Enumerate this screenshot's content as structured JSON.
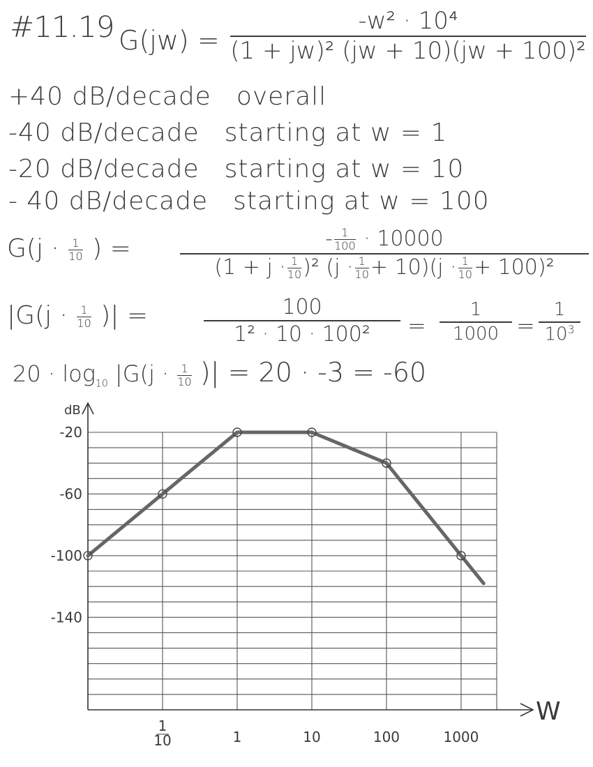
{
  "problem_number": "#11.19",
  "transfer_function": {
    "lhs": "G(jw) =",
    "numerator": "-w² · 10⁴",
    "denominator": "(1 + jw)² (jw + 10)(jw + 100)²"
  },
  "slope_rules": [
    {
      "slope": "+40 dB/decade",
      "condition": "overall"
    },
    {
      "slope": "-40 dB/decade",
      "condition": "starting at  w = 1"
    },
    {
      "slope": "-20 dB/decade",
      "condition": "starting at  w = 10"
    },
    {
      "slope": "- 40 dB/decade",
      "condition": "starting at  w = 100"
    }
  ],
  "eval_step_1": {
    "lhs_prefix": "G(j ·",
    "lhs_suffix": ") =",
    "numerator_suffix": " · 10000",
    "denominator_a": "(1 + j ·",
    "denominator_b": ")² (j ·",
    "denominator_c": "+ 10)(j ·",
    "denominator_d": "+ 100)²"
  },
  "eval_step_2": {
    "lhs_prefix": "|G(j ·",
    "lhs_suffix": ")| =",
    "numerator": "100",
    "denominator": "1² · 10 · 100²",
    "eq1": "=",
    "frac2_num": "1",
    "frac2_den": "1000",
    "eq2": "=",
    "frac3_num": "1",
    "frac3_den_base": "10",
    "frac3_den_exp": "3"
  },
  "eval_step_3": {
    "prefix": "20 · log",
    "base": "10",
    "mid": "|G(j ·",
    "suffix": ")| = 20 · -3 = -60"
  },
  "fraction_tenth": {
    "num": "1",
    "den": "10"
  },
  "fraction_hundredth": {
    "num": "1",
    "den": "100"
  },
  "chart_data": {
    "type": "line",
    "title": "",
    "xlabel": "W",
    "ylabel": "dB",
    "x_scale": "log",
    "x_ticks": [
      {
        "value": 0.1,
        "label_num": "1",
        "label_den": "10"
      },
      {
        "value": 1,
        "label": "1"
      },
      {
        "value": 10,
        "label": "10"
      },
      {
        "value": 100,
        "label": "100"
      },
      {
        "value": 1000,
        "label": "1000"
      }
    ],
    "y_ticks": [
      {
        "value": -20,
        "label": "-20"
      },
      {
        "value": -60,
        "label": "-60"
      },
      {
        "value": -100,
        "label": "-100"
      },
      {
        "value": -140,
        "label": "-140"
      }
    ],
    "xlim": [
      0.01,
      3000
    ],
    "ylim": [
      -200,
      -20
    ],
    "grid": true,
    "series": [
      {
        "color": "#666666",
        "points": [
          {
            "x": 0.01,
            "y": -100
          },
          {
            "x": 0.1,
            "y": -60
          },
          {
            "x": 1,
            "y": -20
          },
          {
            "x": 10,
            "y": -20
          },
          {
            "x": 100,
            "y": -40
          },
          {
            "x": 1000,
            "y": -100
          },
          {
            "x": 2000,
            "y": -118
          }
        ]
      }
    ],
    "markers": [
      {
        "x": 0.01,
        "y": -100
      },
      {
        "x": 0.1,
        "y": -60
      },
      {
        "x": 1,
        "y": -20
      },
      {
        "x": 10,
        "y": -20
      },
      {
        "x": 100,
        "y": -40
      },
      {
        "x": 1000,
        "y": -100
      }
    ]
  }
}
